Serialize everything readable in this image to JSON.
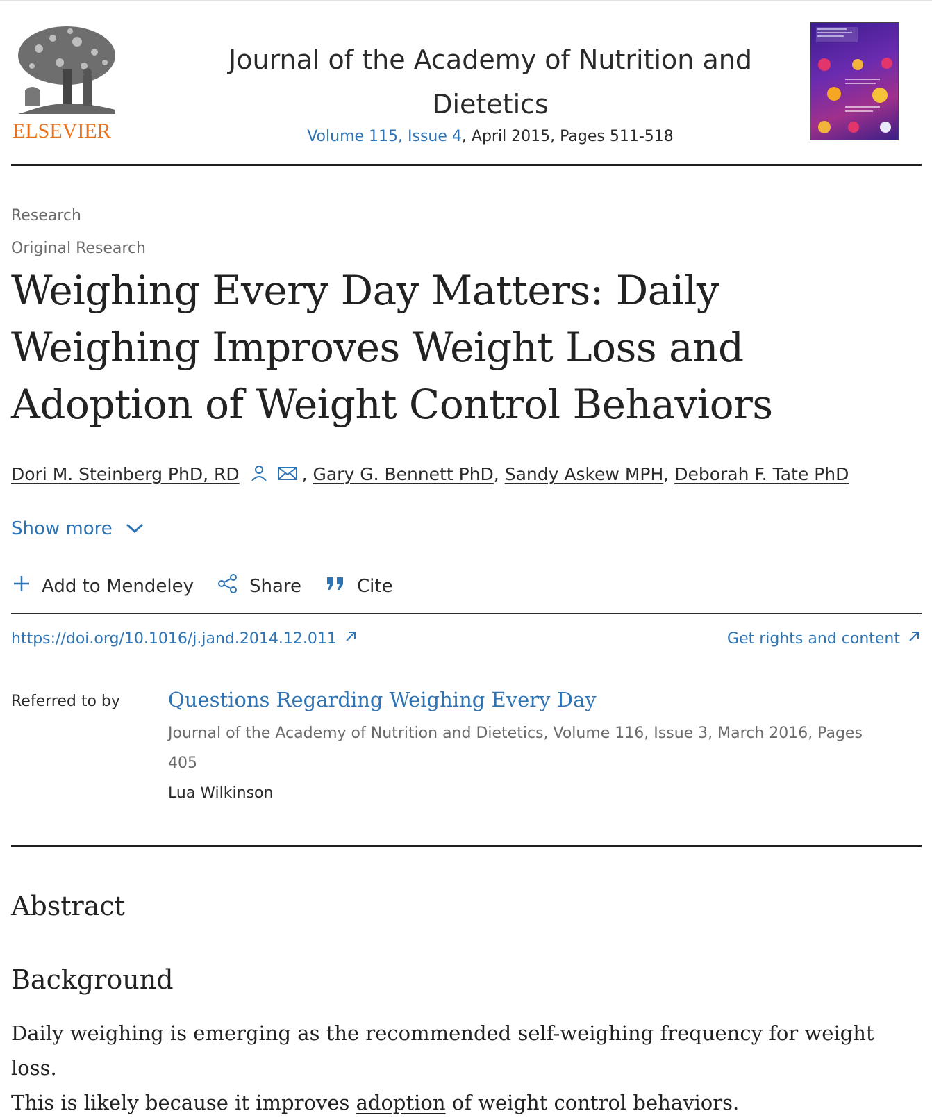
{
  "journal": {
    "publisher_logo_text": "ELSEVIER",
    "title_line1": "Journal of the Academy of Nutrition and",
    "title_line2": "Dietetics",
    "volume_issue": "Volume 115, Issue 4",
    "date_pages": ", April 2015, Pages 511-518"
  },
  "breadcrumb": {
    "section": "Research",
    "subsection": "Original Research"
  },
  "article": {
    "title_line1": "Weighing Every Day Matters: Daily",
    "title_line2": "Weighing Improves Weight Loss and",
    "title_line3": "Adoption of Weight Control Behaviors",
    "authors": [
      "Dori M. Steinberg PhD, RD",
      "Gary G. Bennett PhD",
      "Sandy Askew MPH",
      "Deborah F. Tate PhD"
    ],
    "author_separator": ","
  },
  "show_more": {
    "label": "Show more"
  },
  "actions": {
    "mendeley": "Add to Mendeley",
    "share": "Share",
    "cite": "Cite"
  },
  "links": {
    "doi": "https://doi.org/10.1016/j.jand.2014.12.011",
    "rights": "Get rights and content"
  },
  "referred": {
    "label": "Referred to by",
    "title": "Questions Regarding Weighing Every Day",
    "source_line1": "Journal of the Academy of Nutrition and Dietetics, Volume 116, Issue 3, March 2016, Pages",
    "source_line2": "405",
    "author": "Lua Wilkinson"
  },
  "abstract": {
    "heading": "Abstract",
    "background_heading": "Background",
    "text_line1": "Daily weighing is emerging as the recommended self-weighing frequency for weight loss.",
    "text_line2_pre": "This is likely because it improves ",
    "text_line2_link": "adoption",
    "text_line2_post": " of weight control behaviors."
  },
  "colors": {
    "link": "#2e74b5",
    "publisher_orange": "#e9711c",
    "text": "#222222",
    "muted": "#6b6b6b"
  }
}
